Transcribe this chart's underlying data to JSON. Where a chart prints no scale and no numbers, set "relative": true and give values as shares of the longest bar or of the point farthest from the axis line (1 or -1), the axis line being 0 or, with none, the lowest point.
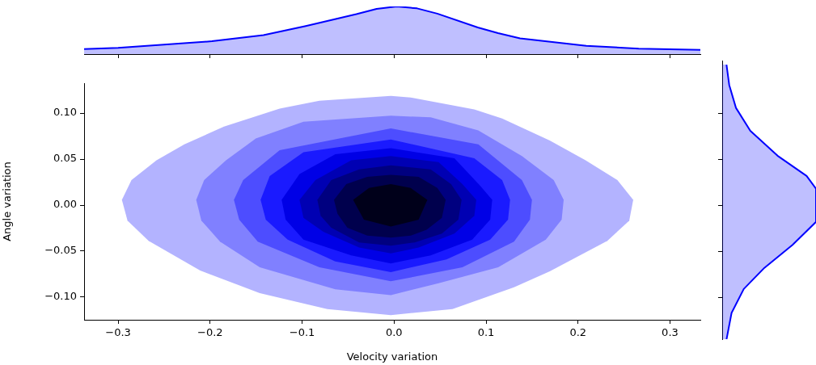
{
  "chart_data": [
    {
      "type": "area",
      "relative": true,
      "tick_labels": false,
      "grid": false,
      "legend": false,
      "xlim": [
        -0.337,
        0.333
      ],
      "xticks": [
        -0.3,
        -0.2,
        -0.1,
        0,
        0.1,
        0.2,
        0.3
      ],
      "series": [
        {
          "color": "#0000ff",
          "x": [
            -0.337,
            -0.3,
            -0.198,
            -0.142,
            -0.096,
            -0.041,
            -0.019,
            0.003,
            0.025,
            0.047,
            0.091,
            0.113,
            0.137,
            0.209,
            0.266,
            0.333
          ],
          "values": [
            0.105,
            0.13,
            0.27,
            0.4,
            0.59,
            0.84,
            0.95,
            1,
            0.96,
            0.85,
            0.56,
            0.44,
            0.33,
            0.175,
            0.114,
            0.088
          ]
        }
      ]
    },
    {
      "type": "area",
      "xlabel": "Velocity variation",
      "ylabel": "Angle variation",
      "grid": false,
      "legend": false,
      "xlim": [
        -0.337,
        0.333
      ],
      "ylim": [
        -0.1246,
        0.1325
      ],
      "xticks": [
        {
          "value": -0.3,
          "label": "−0.3"
        },
        {
          "value": -0.2,
          "label": "−0.2"
        },
        {
          "value": -0.1,
          "label": "−0.1"
        },
        {
          "value": 0,
          "label": "0.0"
        },
        {
          "value": 0.1,
          "label": "0.1"
        },
        {
          "value": 0.2,
          "label": "0.2"
        },
        {
          "value": 0.3,
          "label": "0.3"
        }
      ],
      "yticks": [
        {
          "value": -0.1,
          "label": "−0.10"
        },
        {
          "value": -0.05,
          "label": "−0.05"
        },
        {
          "value": 0,
          "label": "0.00"
        },
        {
          "value": 0.05,
          "label": "0.05"
        },
        {
          "value": 0.1,
          "label": "0.10"
        }
      ],
      "series": [
        {
          "color": "#b3b3ff",
          "x": [
            -0.2959,
            -0.2855,
            -0.2583,
            -0.228,
            -0.1849,
            -0.1244,
            -0.0812,
            -0.0035,
            0.0181,
            0.0872,
            0.1175,
            0.1693,
            0.2082,
            0.2428,
            0.26,
            0.2557,
            0.2319,
            0.1693,
            0.1304,
            0.0635,
            -0.0035,
            -0.0726,
            -0.146,
            -0.2108,
            -0.2669,
            -0.2898
          ],
          "values": [
            0.0057,
            0.0272,
            0.0488,
            0.066,
            0.0854,
            0.1049,
            0.1135,
            0.1187,
            0.1169,
            0.104,
            0.0941,
            0.0703,
            0.0488,
            0.0272,
            0.0057,
            -0.0168,
            -0.0388,
            -0.0719,
            -0.0892,
            -0.113,
            -0.1195,
            -0.113,
            -0.0957,
            -0.0711,
            -0.0388,
            -0.0168
          ]
        },
        {
          "color": "#8080ff",
          "x": [
            -0.2151,
            -0.2065,
            -0.1827,
            -0.1503,
            -0.0985,
            -0.0035,
            0.0398,
            0.0916,
            0.139,
            0.1736,
            0.1844,
            0.1822,
            0.165,
            0.1132,
            0.0484,
            -0.0035,
            -0.0639,
            -0.146,
            -0.1892,
            -0.2095
          ],
          "values": [
            0.0057,
            0.0272,
            0.0488,
            0.0725,
            0.0906,
            0.0971,
            0.0954,
            0.0811,
            0.0532,
            0.0272,
            0.0057,
            -0.0159,
            -0.0375,
            -0.0676,
            -0.0849,
            -0.0979,
            -0.0914,
            -0.0676,
            -0.0396,
            -0.0168
          ]
        },
        {
          "color": "#4d4dff",
          "x": [
            -0.1741,
            -0.1641,
            -0.1244,
            -0.0035,
            0.0916,
            0.139,
            0.1499,
            0.1477,
            0.1304,
            0.0743,
            -0.0035,
            -0.0812,
            -0.1482,
            -0.1684
          ],
          "values": [
            0.0057,
            0.0272,
            0.0596,
            0.0833,
            0.066,
            0.0272,
            0.0057,
            -0.0159,
            -0.0396,
            -0.0676,
            -0.0828,
            -0.0676,
            -0.0396,
            -0.0159
          ]
        },
        {
          "color": "#1a1aff",
          "x": [
            -0.1451,
            -0.1352,
            -0.0985,
            -0.0035,
            0.0872,
            0.1175,
            0.1261,
            0.1239,
            0.1045,
            0.057,
            -0.0035,
            -0.0639,
            -0.1157,
            -0.1395
          ],
          "values": [
            0.0057,
            0.0316,
            0.0575,
            0.0712,
            0.051,
            0.0272,
            0.0057,
            -0.0159,
            -0.0375,
            -0.059,
            -0.0728,
            -0.0612,
            -0.0375,
            -0.0159
          ]
        },
        {
          "color": "#0000e6",
          "x": [
            -0.1222,
            -0.1028,
            -0.0639,
            -0.0035,
            0.0656,
            0.0938,
            0.1067,
            0.1045,
            0.085,
            0.0398,
            -0.0035,
            -0.0466,
            -0.0985,
            -0.1179
          ],
          "values": [
            0.0057,
            0.0337,
            0.0553,
            0.0618,
            0.051,
            0.0208,
            0.0057,
            -0.0159,
            -0.0375,
            -0.0547,
            -0.0633,
            -0.0547,
            -0.0375,
            -0.0159
          ]
        },
        {
          "color": "#0000b3",
          "x": [
            -0.1028,
            -0.0855,
            -0.0466,
            -0.0035,
            0.0484,
            0.0743,
            0.0894,
            0.0872,
            0.0656,
            0.0267,
            -0.0035,
            -0.038,
            -0.0769,
            -0.0985
          ],
          "values": [
            0.0057,
            0.0272,
            0.0488,
            0.0532,
            0.0467,
            0.0229,
            0.0057,
            -0.0116,
            -0.031,
            -0.0461,
            -0.0525,
            -0.0461,
            -0.0289,
            -0.0138
          ]
        },
        {
          "color": "#000080",
          "x": [
            -0.0834,
            -0.0683,
            -0.038,
            -0.0035,
            0.0398,
            0.062,
            0.0734,
            0.0699,
            0.052,
            0.0225,
            -0.0035,
            -0.038,
            -0.0683,
            -0.0798
          ],
          "values": [
            0.0057,
            0.0272,
            0.0389,
            0.0432,
            0.0389,
            0.0229,
            0.0057,
            -0.0159,
            -0.031,
            -0.0405,
            -0.044,
            -0.0405,
            -0.0245,
            -0.0116
          ]
        },
        {
          "color": "#00004d",
          "x": [
            -0.0653,
            -0.052,
            -0.0292,
            -0.0035,
            0.0267,
            0.047,
            0.0561,
            0.052,
            0.0354,
            0.0182,
            -0.0035,
            -0.0292,
            -0.0508,
            -0.0615
          ],
          "values": [
            0.0057,
            0.0229,
            0.0307,
            0.0328,
            0.0307,
            0.0186,
            0.0057,
            -0.0138,
            -0.0267,
            -0.0332,
            -0.0354,
            -0.0332,
            -0.0245,
            -0.0095
          ]
        },
        {
          "color": "#00001a",
          "x": [
            -0.0445,
            -0.0272,
            -0.0035,
            0.0181,
            0.0362,
            0.0267,
            -0.0035,
            -0.0328
          ],
          "values": [
            0.0057,
            0.0186,
            0.0229,
            0.0186,
            0.0057,
            -0.0159,
            -0.0232,
            -0.0159
          ]
        }
      ]
    },
    {
      "type": "area",
      "relative": true,
      "orientation": "horizontal",
      "tick_labels": false,
      "grid": false,
      "legend": false,
      "ylim": [
        -0.1456,
        0.1575
      ],
      "yticks": [
        -0.1,
        -0.05,
        0,
        0.05,
        0.1
      ],
      "series": [
        {
          "color": "#0000ff",
          "x": [
            0.153,
            0.131,
            0.106,
            0.081,
            0.054,
            0.032,
            0.018,
            -0.018,
            -0.043,
            -0.068,
            -0.091,
            -0.117,
            -0.146
          ],
          "values": [
            0.046,
            0.075,
            0.147,
            0.3,
            0.59,
            0.9,
            1,
            1,
            0.75,
            0.45,
            0.23,
            0.1,
            0.046
          ]
        }
      ]
    }
  ]
}
